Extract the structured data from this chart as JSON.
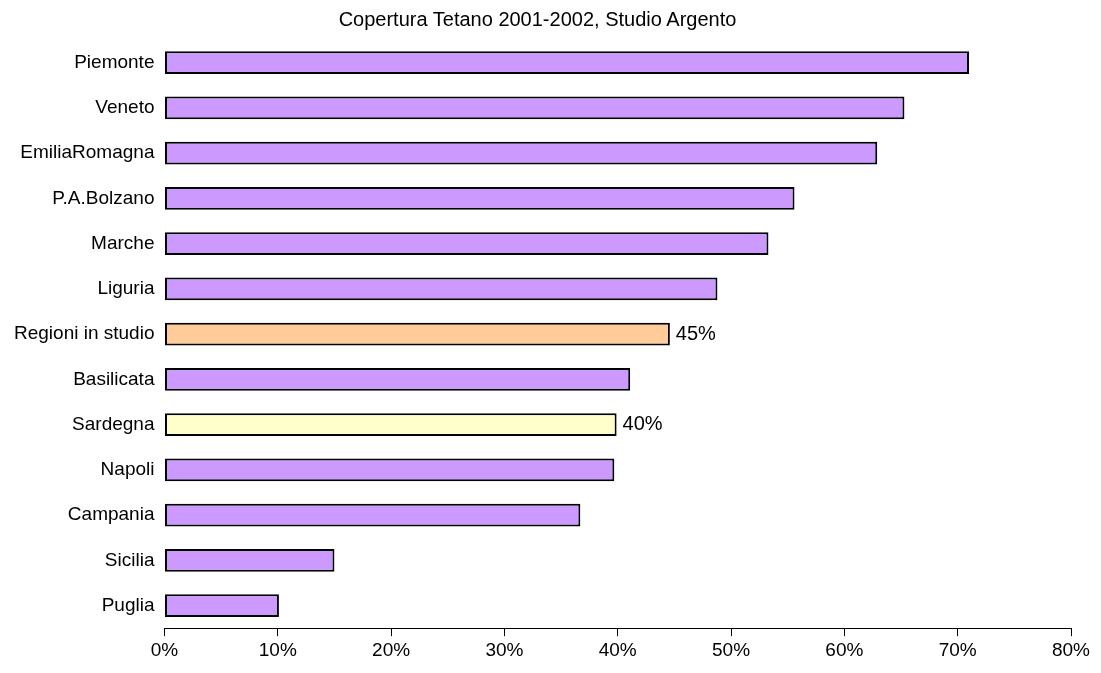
{
  "chart_data": {
    "type": "bar",
    "orientation": "horizontal",
    "title": "Copertura Tetano 2001-2002, Studio Argento",
    "categories": [
      "Piemonte",
      "Veneto",
      "EmiliaRomagna",
      "P.A.Bolzano",
      "Marche",
      "Liguria",
      "Regioni in studio",
      "Basilicata",
      "Sardegna",
      "Napoli",
      "Campania",
      "Sicilia",
      "Puglia"
    ],
    "values": [
      71.0,
      65.3,
      62.9,
      55.6,
      53.3,
      48.8,
      44.6,
      41.1,
      39.9,
      39.7,
      36.7,
      15.0,
      10.1
    ],
    "colors": [
      "#cc99ff",
      "#cc99ff",
      "#cc99ff",
      "#cc99ff",
      "#cc99ff",
      "#cc99ff",
      "#ffcc99",
      "#cc99ff",
      "#ffffcc",
      "#cc99ff",
      "#cc99ff",
      "#cc99ff",
      "#cc99ff"
    ],
    "value_labels": [
      null,
      null,
      null,
      null,
      null,
      null,
      "45%",
      null,
      "40%",
      null,
      null,
      null,
      null
    ],
    "xlim": [
      0,
      80
    ],
    "xticks": [
      {
        "value": 0,
        "label": "0%"
      },
      {
        "value": 10,
        "label": "10%"
      },
      {
        "value": 20,
        "label": "20%"
      },
      {
        "value": 30,
        "label": "30%"
      },
      {
        "value": 40,
        "label": "40%"
      },
      {
        "value": 50,
        "label": "50%"
      },
      {
        "value": 60,
        "label": "60%"
      },
      {
        "value": 70,
        "label": "70%"
      },
      {
        "value": 80,
        "label": "80%"
      }
    ],
    "grid": false,
    "legend": false
  }
}
